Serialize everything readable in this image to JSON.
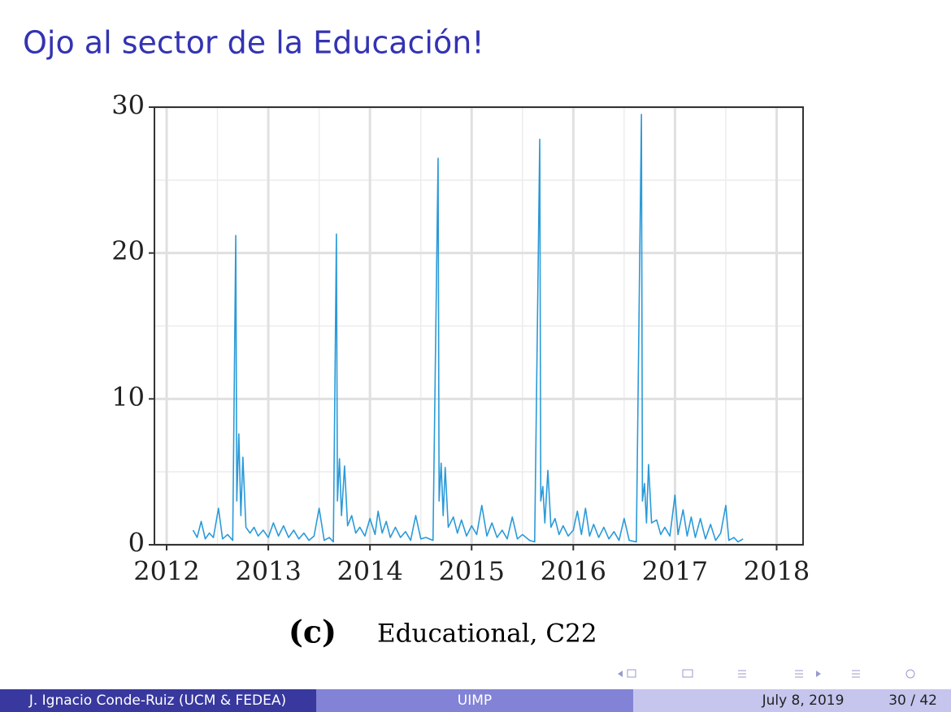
{
  "slide": {
    "title": "Ojo al sector de la Educación!",
    "caption_label": "(c)",
    "caption": "Educational, C22",
    "footer": {
      "author": "J. Ignacio Conde-Ruiz (UCM & FEDEA)",
      "institute": "UIMP",
      "date": "July 8, 2019",
      "page": "30 / 42"
    }
  },
  "chart_data": {
    "type": "line",
    "x": [
      2012.26,
      2012.3,
      2012.34,
      2012.38,
      2012.42,
      2012.46,
      2012.51,
      2012.55,
      2012.6,
      2012.65,
      2012.68,
      2012.69,
      2012.71,
      2012.73,
      2012.75,
      2012.78,
      2012.82,
      2012.86,
      2012.9,
      2012.95,
      2013.0,
      2013.05,
      2013.1,
      2013.15,
      2013.2,
      2013.25,
      2013.3,
      2013.35,
      2013.4,
      2013.45,
      2013.5,
      2013.55,
      2013.6,
      2013.64,
      2013.67,
      2013.68,
      2013.7,
      2013.72,
      2013.75,
      2013.78,
      2013.82,
      2013.86,
      2013.9,
      2013.95,
      2014.0,
      2014.05,
      2014.08,
      2014.12,
      2014.16,
      2014.2,
      2014.25,
      2014.3,
      2014.35,
      2014.4,
      2014.45,
      2014.5,
      2014.55,
      2014.62,
      2014.67,
      2014.68,
      2014.7,
      2014.72,
      2014.74,
      2014.77,
      2014.82,
      2014.86,
      2014.9,
      2014.95,
      2015.0,
      2015.05,
      2015.1,
      2015.15,
      2015.2,
      2015.25,
      2015.3,
      2015.35,
      2015.4,
      2015.45,
      2015.5,
      2015.57,
      2015.62,
      2015.67,
      2015.68,
      2015.7,
      2015.72,
      2015.75,
      2015.78,
      2015.82,
      2015.86,
      2015.9,
      2015.95,
      2016.0,
      2016.04,
      2016.08,
      2016.12,
      2016.16,
      2016.2,
      2016.25,
      2016.3,
      2016.35,
      2016.4,
      2016.45,
      2016.5,
      2016.55,
      2016.62,
      2016.67,
      2016.68,
      2016.7,
      2016.72,
      2016.74,
      2016.77,
      2016.82,
      2016.86,
      2016.9,
      2016.95,
      2017.0,
      2017.03,
      2017.08,
      2017.12,
      2017.16,
      2017.2,
      2017.25,
      2017.3,
      2017.35,
      2017.4,
      2017.45,
      2017.5,
      2017.53,
      2017.58,
      2017.62,
      2017.67
    ],
    "values": [
      1.0,
      0.5,
      1.6,
      0.4,
      0.8,
      0.5,
      2.5,
      0.4,
      0.7,
      0.3,
      21.2,
      3,
      7.6,
      2,
      6,
      1.2,
      0.8,
      1.2,
      0.6,
      1.0,
      0.5,
      1.5,
      0.6,
      1.3,
      0.5,
      1.0,
      0.4,
      0.8,
      0.3,
      0.6,
      2.5,
      0.3,
      0.5,
      0.2,
      21.3,
      3,
      5.9,
      2,
      5.4,
      1.3,
      2.0,
      0.8,
      1.2,
      0.6,
      1.8,
      0.7,
      2.3,
      0.8,
      1.6,
      0.5,
      1.2,
      0.5,
      0.9,
      0.3,
      2.0,
      0.4,
      0.5,
      0.3,
      26.5,
      3,
      5.6,
      2,
      5.3,
      1.2,
      1.9,
      0.8,
      1.7,
      0.6,
      1.3,
      0.7,
      2.7,
      0.6,
      1.5,
      0.5,
      1.0,
      0.4,
      1.9,
      0.4,
      0.7,
      0.3,
      0.2,
      27.8,
      3,
      4.0,
      1.5,
      5.1,
      1.2,
      1.8,
      0.7,
      1.3,
      0.6,
      1.0,
      2.3,
      0.7,
      2.5,
      0.6,
      1.4,
      0.5,
      1.2,
      0.4,
      0.9,
      0.3,
      1.8,
      0.3,
      0.2,
      29.5,
      3,
      4.2,
      1.5,
      5.5,
      1.5,
      1.7,
      0.7,
      1.2,
      0.6,
      3.4,
      0.7,
      2.4,
      0.6,
      1.9,
      0.5,
      1.8,
      0.4,
      1.4,
      0.3,
      0.8,
      2.7,
      0.3,
      0.5,
      0.2,
      0.4
    ],
    "color": "#2b9ad8",
    "xlim": [
      2011.88,
      2018.26
    ],
    "xticks": [
      2012,
      2013,
      2014,
      2015,
      2016,
      2017,
      2018
    ],
    "x_minor_ticks": [
      2012.5,
      2013.5,
      2014.5,
      2015.5,
      2016.5,
      2017.5
    ],
    "ylim": [
      0,
      30
    ],
    "yticks": [
      0,
      10,
      20,
      30
    ],
    "y_minor_ticks": [
      5,
      15,
      25
    ],
    "grid": true
  }
}
